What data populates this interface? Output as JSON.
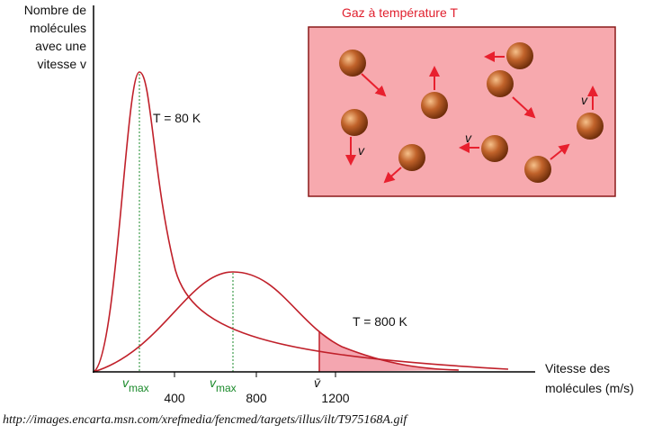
{
  "y_axis_label": [
    "Nombre de",
    "molécules",
    "avec une",
    "vitesse v"
  ],
  "x_axis_label": [
    "Vitesse des",
    "molécules (m/s)"
  ],
  "x_ticks": [
    "400",
    "800",
    "1200"
  ],
  "markers": [
    {
      "symbol": "v",
      "subscript": "max"
    },
    {
      "symbol": "v",
      "subscript": "max"
    },
    {
      "symbol": "v̄"
    }
  ],
  "curves": [
    {
      "label": "T = 80 K"
    },
    {
      "label": "T = 800 K"
    }
  ],
  "inset": {
    "title": "Gaz à température T",
    "velocity_labels": [
      "v",
      "v",
      "v"
    ]
  },
  "source": "http://images.encarta.msn.com/xrefmedia/fencmed/targets/illus/ilt/T975168A.gif"
}
